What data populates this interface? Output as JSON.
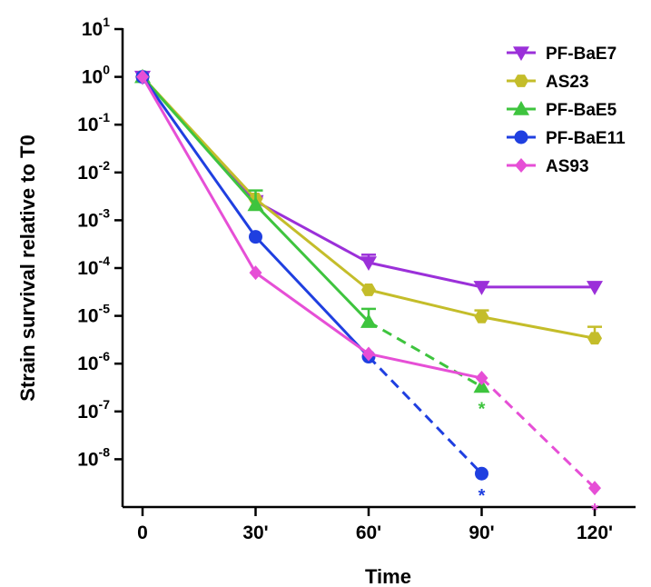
{
  "chart_data": {
    "type": "line",
    "title": "",
    "xlabel": "Time",
    "ylabel": "Strain survival relative to T0",
    "x": [
      0,
      30,
      60,
      90,
      120
    ],
    "x_tick_labels": [
      "0",
      "30'",
      "60'",
      "90'",
      "120'"
    ],
    "y_scale": "log",
    "ylim": [
      1e-09,
      10
    ],
    "y_tick_exponents": [
      1,
      0,
      -1,
      -2,
      -3,
      -4,
      -5,
      -6,
      -7,
      -8
    ],
    "y_tick_base": "10",
    "legend_position": "top-right",
    "series": [
      {
        "name": "PF-BaE7",
        "color": "#9b30d9",
        "marker": "triangle-down",
        "x": [
          0,
          30,
          60,
          90,
          120
        ],
        "y": [
          1,
          0.0025,
          0.00013,
          4e-05,
          4e-05
        ],
        "err": [
          0,
          0.0005,
          6e-05,
          0,
          0
        ],
        "solid_until_index": 4
      },
      {
        "name": "AS23",
        "color": "#c4bd2a",
        "marker": "hexagon",
        "x": [
          0,
          30,
          60,
          90,
          120
        ],
        "y": [
          1,
          0.0028,
          3.5e-05,
          9.5e-06,
          3.4e-06
        ],
        "err": [
          0,
          0,
          0,
          3.5e-06,
          2.5e-06
        ],
        "solid_until_index": 4
      },
      {
        "name": "PF-BaE5",
        "color": "#3ec43e",
        "marker": "triangle-up",
        "x": [
          0,
          30,
          60,
          90
        ],
        "y": [
          1,
          0.0021,
          7.5e-06,
          3.3e-07
        ],
        "err": [
          0,
          0.0021,
          6.5e-06,
          0
        ],
        "solid_until_index": 2,
        "star": "*"
      },
      {
        "name": "PF-BaE11",
        "color": "#1f3fe0",
        "marker": "circle",
        "x": [
          0,
          30,
          60,
          90
        ],
        "y": [
          1,
          0.00045,
          1.4e-06,
          5e-09
        ],
        "err": [
          0,
          0,
          0,
          0
        ],
        "solid_until_index": 2,
        "star": "*"
      },
      {
        "name": "AS93",
        "color": "#e64fd6",
        "marker": "diamond",
        "x": [
          0,
          30,
          60,
          90,
          120
        ],
        "y": [
          1,
          8e-05,
          1.6e-06,
          5e-07,
          2.5e-09
        ],
        "err": [
          0,
          0,
          0,
          0,
          0
        ],
        "solid_until_index": 3,
        "star": "*"
      }
    ]
  }
}
